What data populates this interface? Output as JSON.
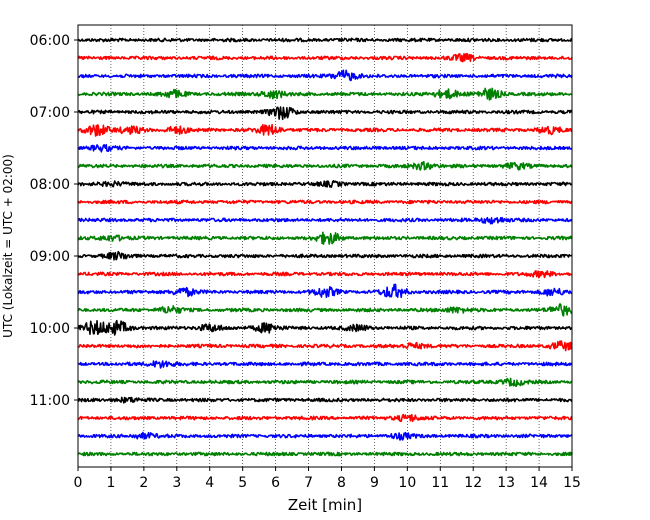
{
  "chart_data": {
    "type": "line",
    "title": "",
    "xlabel": "Zeit  [min]",
    "ylabel": "UTC (Lokalzeit = UTC + 02:00)",
    "xlim": [
      0,
      15
    ],
    "x_ticks": [
      0,
      1,
      2,
      3,
      4,
      5,
      6,
      7,
      8,
      9,
      10,
      11,
      12,
      13,
      14,
      15
    ],
    "x_tick_labels": [
      "0",
      "1",
      "2",
      "3",
      "4",
      "5",
      "6",
      "7",
      "8",
      "9",
      "10",
      "11",
      "12",
      "13",
      "14",
      "15"
    ],
    "y_ticks": [
      {
        "trace_index": 0,
        "label": "06:00"
      },
      {
        "trace_index": 4,
        "label": "07:00"
      },
      {
        "trace_index": 8,
        "label": "08:00"
      },
      {
        "trace_index": 12,
        "label": "09:00"
      },
      {
        "trace_index": 16,
        "label": "10:00"
      },
      {
        "trace_index": 20,
        "label": "11:00"
      }
    ],
    "trace_interval_minutes": 15,
    "start_time": "06:00",
    "grid": "vertical dotted",
    "colors": [
      "#000000",
      "#ff0000",
      "#0000ff",
      "#008000"
    ],
    "series": [
      {
        "start": "06:00",
        "color": "#000000",
        "bursts": []
      },
      {
        "start": "06:15",
        "color": "#ff0000",
        "bursts": [
          [
            11.7,
            0.5
          ]
        ]
      },
      {
        "start": "06:30",
        "color": "#0000ff",
        "bursts": [
          [
            8.1,
            0.8
          ]
        ]
      },
      {
        "start": "06:45",
        "color": "#008000",
        "bursts": [
          [
            2.9,
            0.5
          ],
          [
            5.9,
            0.6
          ],
          [
            11.2,
            0.7
          ],
          [
            12.5,
            0.8
          ]
        ]
      },
      {
        "start": "07:00",
        "color": "#000000",
        "bursts": [
          [
            6.2,
            1.0
          ]
        ]
      },
      {
        "start": "07:15",
        "color": "#ff0000",
        "bursts": [
          [
            0.6,
            0.9
          ],
          [
            1.6,
            0.5
          ],
          [
            3.0,
            0.5
          ],
          [
            5.8,
            0.8
          ],
          [
            14.3,
            0.5
          ]
        ]
      },
      {
        "start": "07:30",
        "color": "#0000ff",
        "bursts": [
          [
            0.7,
            0.4
          ]
        ]
      },
      {
        "start": "07:45",
        "color": "#008000",
        "bursts": [
          [
            10.5,
            0.5
          ],
          [
            13.3,
            0.4
          ]
        ]
      },
      {
        "start": "08:00",
        "color": "#000000",
        "bursts": [
          [
            1.0,
            0.3
          ],
          [
            7.7,
            0.3
          ]
        ]
      },
      {
        "start": "08:15",
        "color": "#ff0000",
        "bursts": []
      },
      {
        "start": "08:30",
        "color": "#0000ff",
        "bursts": [
          [
            12.6,
            0.5
          ]
        ]
      },
      {
        "start": "08:45",
        "color": "#008000",
        "bursts": [
          [
            7.6,
            0.9
          ],
          [
            1.0,
            0.4
          ]
        ]
      },
      {
        "start": "09:00",
        "color": "#000000",
        "bursts": [
          [
            1.2,
            0.5
          ]
        ]
      },
      {
        "start": "09:15",
        "color": "#ff0000",
        "bursts": [
          [
            14.1,
            0.4
          ]
        ]
      },
      {
        "start": "09:30",
        "color": "#0000ff",
        "bursts": [
          [
            3.2,
            0.6
          ],
          [
            7.5,
            0.7
          ],
          [
            9.6,
            1.0
          ],
          [
            14.4,
            0.5
          ]
        ]
      },
      {
        "start": "09:45",
        "color": "#008000",
        "bursts": [
          [
            2.8,
            0.5
          ],
          [
            14.7,
            0.8
          ],
          [
            11.5,
            0.4
          ]
        ]
      },
      {
        "start": "10:00",
        "color": "#000000",
        "bursts": [
          [
            0.5,
            1.0
          ],
          [
            1.2,
            1.0
          ],
          [
            4.0,
            0.5
          ],
          [
            5.7,
            0.7
          ],
          [
            8.5,
            0.4
          ]
        ]
      },
      {
        "start": "10:15",
        "color": "#ff0000",
        "bursts": [
          [
            14.7,
            0.6
          ],
          [
            10.2,
            0.4
          ]
        ]
      },
      {
        "start": "10:30",
        "color": "#0000ff",
        "bursts": [
          [
            2.5,
            0.5
          ]
        ]
      },
      {
        "start": "10:45",
        "color": "#008000",
        "bursts": [
          [
            13.2,
            0.5
          ]
        ]
      },
      {
        "start": "11:00",
        "color": "#000000",
        "bursts": [
          [
            1.5,
            0.3
          ]
        ]
      },
      {
        "start": "11:15",
        "color": "#ff0000",
        "bursts": [
          [
            10.0,
            0.5
          ]
        ]
      },
      {
        "start": "11:30",
        "color": "#0000ff",
        "bursts": [
          [
            2.0,
            0.4
          ],
          [
            9.8,
            0.4
          ]
        ]
      },
      {
        "start": "11:45",
        "color": "#008000",
        "bursts": []
      }
    ]
  }
}
